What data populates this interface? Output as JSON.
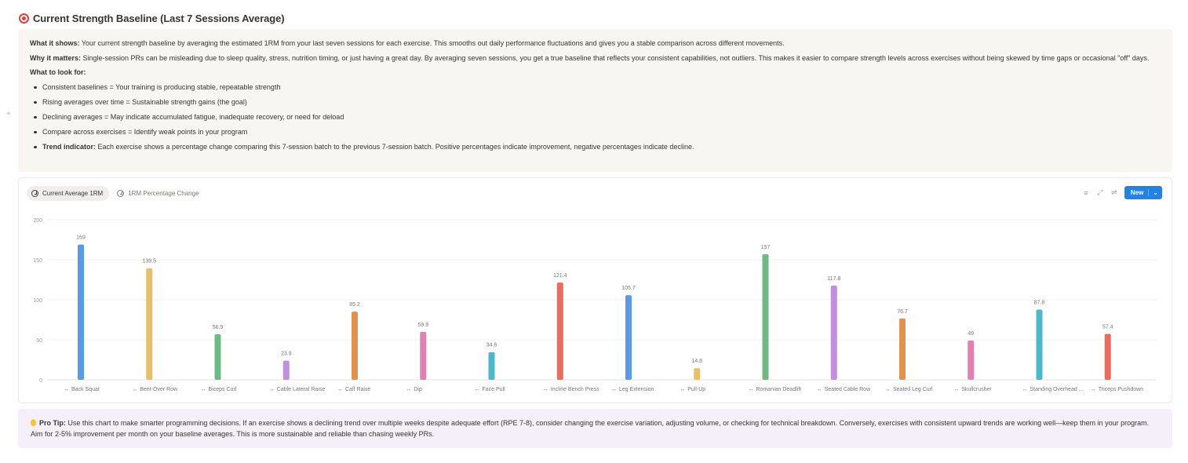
{
  "page": {
    "title": "Current Strength Baseline (Last 7 Sessions Average)",
    "title_icon": "target-icon"
  },
  "callout": {
    "what_label": "What it shows:",
    "what_text": " Your current strength baseline by averaging the estimated 1RM from your last seven sessions for each exercise. This smooths out daily performance fluctuations and gives you a stable comparison across different movements.",
    "why_label": "Why it matters:",
    "why_text": " Single-session PRs can be misleading due to sleep quality, stress, nutrition timing, or just having a great day. By averaging seven sessions, you get a true baseline that reflects your consistent capabilities, not outliers. This makes it easier to compare strength levels across exercises without being skewed by time gaps or occasional \"off\" days.",
    "look_label": "What to look for:",
    "bullets": [
      "Consistent baselines = Your training is producing stable, repeatable strength",
      "Rising averages over time = Sustainable strength gains (the goal)",
      "Declining averages = May indicate accumulated fatigue, inadequate recovery, or need for deload",
      "Compare across exercises = Identify weak points in your program"
    ],
    "trend_label": "Trend indicator:",
    "trend_text": " Each exercise shows a percentage change comparing this 7-session batch to the previous 7-session batch. Positive percentages indicate improvement, negative percentages indicate decline."
  },
  "toolbar": {
    "tabs": [
      {
        "label": "Current Average 1RM",
        "active": true
      },
      {
        "label": "1RM Percentage Change",
        "active": false
      }
    ],
    "new_label": "New",
    "icons": [
      "filter-icon",
      "expand-icon",
      "settings-icon"
    ]
  },
  "chart_data": {
    "type": "bar",
    "title": "",
    "xlabel": "",
    "ylabel": "",
    "ylim": [
      0,
      200
    ],
    "yticks": [
      0,
      50,
      100,
      150,
      200
    ],
    "grid": true,
    "legend": "none",
    "categories": [
      "Back Squat",
      "Bent-Over Row",
      "Biceps Curl",
      "Cable Lateral Raise",
      "Calf Raise",
      "Dip",
      "Face Pull",
      "Incline Bench Press",
      "Leg Extension",
      "Pull-Up",
      "Romanian Deadlift",
      "Seated Cable Row",
      "Seated Leg Curl",
      "Skullcrusher",
      "Standing Overhead ...",
      "Triceps Pushdown"
    ],
    "values": [
      169,
      139.5,
      56.9,
      23.9,
      85.2,
      59.9,
      34.6,
      121.4,
      105.7,
      14.6,
      157,
      117.8,
      76.7,
      49,
      87.8,
      57.4
    ],
    "labels": [
      "169",
      "139.5",
      "56.9",
      "23.9",
      "85.2",
      "59.9",
      "34.6",
      "121.4",
      "105.7",
      "14.6",
      "157",
      "117.8",
      "76.7",
      "49",
      "87.8",
      "57.4"
    ],
    "colors": [
      "#5b9be6",
      "#e8c06a",
      "#6cbb87",
      "#c08fdf",
      "#e09350",
      "#e181b1",
      "#4cb8c9",
      "#e76d5f",
      "#5b9be6",
      "#e8c06a",
      "#6cbb87",
      "#c08fdf",
      "#e09350",
      "#e181b1",
      "#4cb8c9",
      "#e76d5f"
    ]
  },
  "tip": {
    "label": "Pro Tip:",
    "text": " Use this chart to make smarter programming decisions. If an exercise shows a declining trend over multiple weeks despite adequate effort (RPE 7-8), consider changing the exercise variation, adjusting volume, or checking for technical breakdown. Conversely, exercises with consistent upward trends are working well—keep them in your program. Aim for 2-5% improvement per month on your baseline averages. This is more sustainable and reliable than chasing weekly PRs."
  }
}
